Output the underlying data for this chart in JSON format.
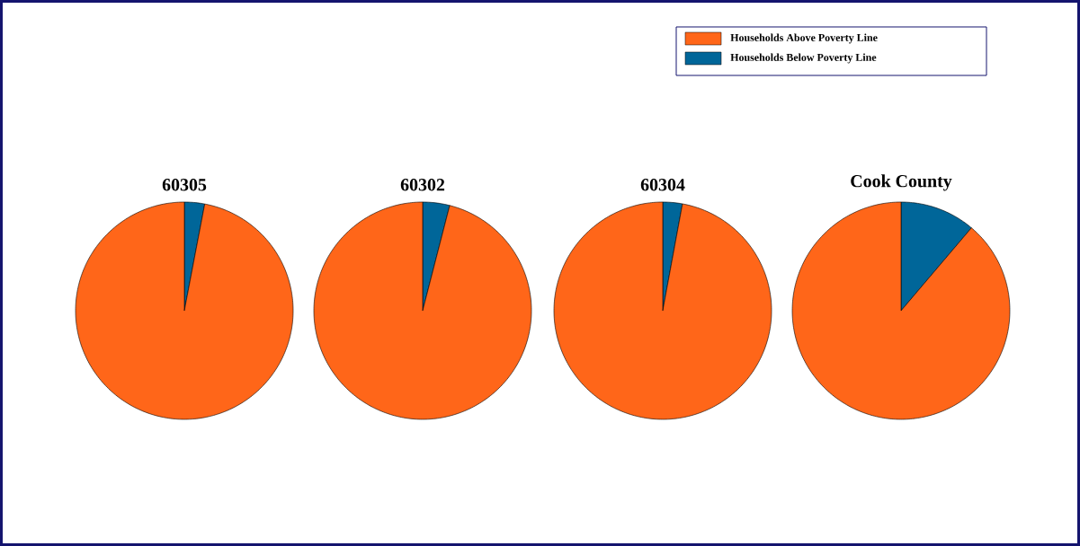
{
  "chart_data": [
    {
      "type": "pie",
      "title": "60305",
      "categories": [
        "Households Above Poverty Line",
        "Households Below Poverty Line"
      ],
      "values": [
        97.0,
        3.0
      ],
      "colors": [
        "#ff6619",
        "#006699"
      ],
      "legend": "top right"
    },
    {
      "type": "pie",
      "title": "60302",
      "values": [
        96.0,
        4.0
      ],
      "colors": [
        "#ff6619",
        "#006699"
      ]
    },
    {
      "type": "pie",
      "title": "60304",
      "values": [
        97.1,
        2.9
      ],
      "colors": [
        "#ff6619",
        "#006699"
      ]
    },
    {
      "type": "pie",
      "title": "Cook County",
      "values": [
        88.8,
        11.2
      ],
      "colors": [
        "#ff6619",
        "#006699"
      ]
    }
  ]
}
